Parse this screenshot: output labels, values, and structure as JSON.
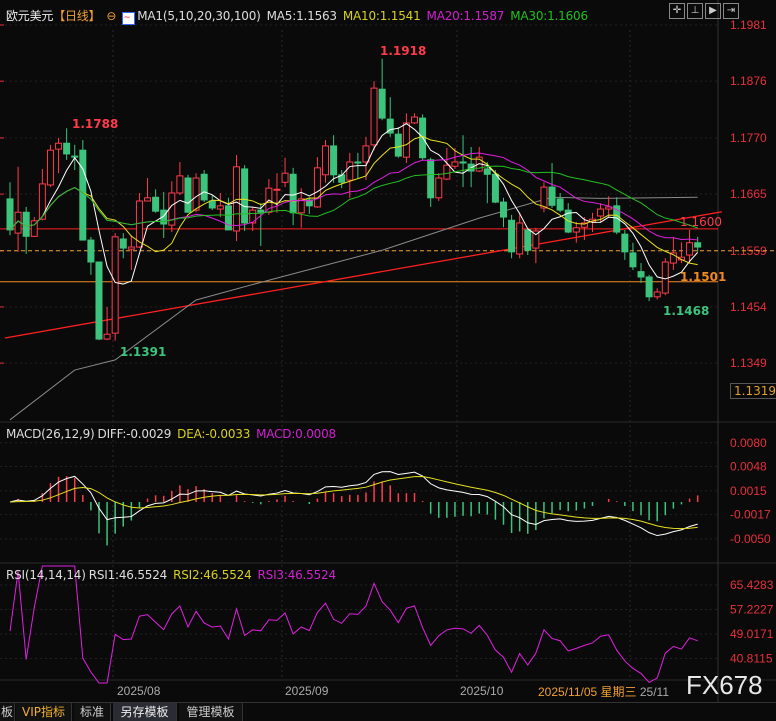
{
  "header": {
    "symbol": "欧元美元",
    "period": "【日线】",
    "ma_label": "MA1(5,10,20,30,100)",
    "ma5": "MA5:1.1563",
    "ma10": "MA10:1.1541",
    "ma20": "MA20:1.1587",
    "ma30": "MA30:1.1606"
  },
  "colors": {
    "up": "#ff3b4b",
    "down": "#3cc47c",
    "ma5": "#ffffff",
    "ma10": "#e6e020",
    "ma20": "#e020e0",
    "ma30": "#22c022",
    "ma100": "#8a8a8a",
    "axis": "#e8303c"
  },
  "toolbar": {
    "icons": [
      "crosshair-icon",
      "draw-line-icon",
      "play-icon",
      "export-icon"
    ]
  },
  "price_axis": [
    "1.1981",
    "1.1876",
    "1.1770",
    "1.1665",
    "1.1559",
    "1.1454",
    "1.1349"
  ],
  "price_axis_values": [
    1.1981,
    1.1876,
    1.177,
    1.1665,
    1.1559,
    1.1454,
    1.1349
  ],
  "cursor_price": "1.1319",
  "annotations": {
    "high": "1.1918",
    "high2": "1.1788",
    "low": "1.1391",
    "low2": "1.1468",
    "resistance": "1.1600",
    "support": "1.1501"
  },
  "levels": {
    "resistance": 1.16,
    "last": 1.1559,
    "support": 1.1501
  },
  "chart_data": {
    "type": "candlestick",
    "ohlc": [
      [
        1.1656,
        1.1687,
        1.1588,
        1.1598
      ],
      [
        1.1592,
        1.1716,
        1.1557,
        1.1631
      ],
      [
        1.1631,
        1.1641,
        1.1553,
        1.1586
      ],
      [
        1.1586,
        1.1622,
        1.1585,
        1.1615
      ],
      [
        1.1618,
        1.1712,
        1.1616,
        1.1684
      ],
      [
        1.1682,
        1.1757,
        1.1678,
        1.1747
      ],
      [
        1.1749,
        1.177,
        1.1704,
        1.176
      ],
      [
        1.176,
        1.1788,
        1.1729,
        1.174
      ],
      [
        1.1736,
        1.1757,
        1.171,
        1.1734
      ],
      [
        1.1747,
        1.1766,
        1.1579,
        1.1579
      ],
      [
        1.1579,
        1.1585,
        1.1514,
        1.1538
      ],
      [
        1.1538,
        1.1538,
        1.1392,
        1.1394
      ],
      [
        1.1394,
        1.1454,
        1.1392,
        1.1403
      ],
      [
        1.1405,
        1.1592,
        1.1391,
        1.1585
      ],
      [
        1.1581,
        1.1592,
        1.1545,
        1.1564
      ],
      [
        1.1562,
        1.1588,
        1.1523,
        1.1566
      ],
      [
        1.1566,
        1.1667,
        1.1564,
        1.1652
      ],
      [
        1.1652,
        1.1695,
        1.1654,
        1.1658
      ],
      [
        1.1659,
        1.1674,
        1.163,
        1.1633
      ],
      [
        1.1635,
        1.1669,
        1.1583,
        1.1609
      ],
      [
        1.1607,
        1.1689,
        1.1594,
        1.1667
      ],
      [
        1.1667,
        1.1725,
        1.1663,
        1.1699
      ],
      [
        1.1695,
        1.1701,
        1.163,
        1.1631
      ],
      [
        1.1635,
        1.1704,
        1.1631,
        1.1695
      ],
      [
        1.1702,
        1.171,
        1.165,
        1.1654
      ],
      [
        1.1652,
        1.1663,
        1.1635,
        1.1639
      ],
      [
        1.1637,
        1.1667,
        1.1622,
        1.1643
      ],
      [
        1.1643,
        1.1658,
        1.1598,
        1.1598
      ],
      [
        1.1596,
        1.1738,
        1.1577,
        1.1716
      ],
      [
        1.1712,
        1.1719,
        1.1596,
        1.1611
      ],
      [
        1.1611,
        1.1641,
        1.1596,
        1.1635
      ],
      [
        1.1635,
        1.1648,
        1.1568,
        1.1631
      ],
      [
        1.1631,
        1.1693,
        1.1626,
        1.1676
      ],
      [
        1.1673,
        1.1704,
        1.163,
        1.1674
      ],
      [
        1.1687,
        1.1733,
        1.1678,
        1.1704
      ],
      [
        1.1702,
        1.1714,
        1.1607,
        1.163
      ],
      [
        1.163,
        1.1676,
        1.1602,
        1.1656
      ],
      [
        1.1654,
        1.1659,
        1.1628,
        1.1643
      ],
      [
        1.1641,
        1.1734,
        1.1639,
        1.1714
      ],
      [
        1.1701,
        1.1766,
        1.1686,
        1.1755
      ],
      [
        1.1755,
        1.1775,
        1.1686,
        1.1701
      ],
      [
        1.1701,
        1.171,
        1.1676,
        1.1687
      ],
      [
        1.1691,
        1.1742,
        1.1658,
        1.1725
      ],
      [
        1.1725,
        1.1742,
        1.1695,
        1.1723
      ],
      [
        1.1725,
        1.1772,
        1.1691,
        1.1755
      ],
      [
        1.1757,
        1.1876,
        1.1747,
        1.1863
      ],
      [
        1.1861,
        1.1918,
        1.1803,
        1.1807
      ],
      [
        1.1805,
        1.1846,
        1.1772,
        1.1779
      ],
      [
        1.1777,
        1.179,
        1.1733,
        1.1736
      ],
      [
        1.1734,
        1.1816,
        1.1723,
        1.1798
      ],
      [
        1.1798,
        1.1816,
        1.1796,
        1.1809
      ],
      [
        1.1807,
        1.1814,
        1.1729,
        1.1733
      ],
      [
        1.1729,
        1.1733,
        1.1641,
        1.1658
      ],
      [
        1.1658,
        1.1704,
        1.1652,
        1.1695
      ],
      [
        1.1693,
        1.1751,
        1.1691,
        1.1719
      ],
      [
        1.1717,
        1.1751,
        1.1712,
        1.1725
      ],
      [
        1.1725,
        1.1775,
        1.1678,
        1.1723
      ],
      [
        1.1721,
        1.1753,
        1.1678,
        1.1708
      ],
      [
        1.1708,
        1.1753,
        1.1706,
        1.1734
      ],
      [
        1.1712,
        1.1725,
        1.1648,
        1.1702
      ],
      [
        1.1702,
        1.171,
        1.1648,
        1.165
      ],
      [
        1.165,
        1.1658,
        1.1603,
        1.1622
      ],
      [
        1.1616,
        1.1626,
        1.1545,
        1.1557
      ],
      [
        1.1553,
        1.163,
        1.1545,
        1.1611
      ],
      [
        1.1598,
        1.1602,
        1.1551,
        1.156
      ],
      [
        1.1564,
        1.1602,
        1.1536,
        1.1596
      ],
      [
        1.1639,
        1.1687,
        1.1631,
        1.1678
      ],
      [
        1.1678,
        1.1723,
        1.1639,
        1.1644
      ],
      [
        1.1656,
        1.1667,
        1.1631,
        1.1635
      ],
      [
        1.1635,
        1.1648,
        1.1592,
        1.1594
      ],
      [
        1.1594,
        1.1613,
        1.1574,
        1.1602
      ],
      [
        1.1603,
        1.1622,
        1.1579,
        1.1611
      ],
      [
        1.1613,
        1.163,
        1.1594,
        1.1618
      ],
      [
        1.1624,
        1.1648,
        1.1611,
        1.1637
      ],
      [
        1.1637,
        1.1661,
        1.1622,
        1.1641
      ],
      [
        1.1643,
        1.1659,
        1.159,
        1.1594
      ],
      [
        1.159,
        1.1598,
        1.1542,
        1.1557
      ],
      [
        1.1555,
        1.1574,
        1.1523,
        1.1529
      ],
      [
        1.152,
        1.1536,
        1.1499,
        1.151
      ],
      [
        1.151,
        1.1514,
        1.1465,
        1.1473
      ],
      [
        1.1473,
        1.1489,
        1.1468,
        1.1482
      ],
      [
        1.148,
        1.1545,
        1.1476,
        1.1538
      ],
      [
        1.1536,
        1.1585,
        1.1523,
        1.1555
      ],
      [
        1.1542,
        1.1575,
        1.1536,
        1.1547
      ],
      [
        1.1551,
        1.1598,
        1.1536,
        1.1574
      ],
      [
        1.1574,
        1.1585,
        1.1557,
        1.1566
      ]
    ],
    "ma100": [
      [
        0,
        1.1243
      ],
      [
        8,
        1.1336
      ],
      [
        13,
        1.1355
      ],
      [
        23,
        1.1467
      ],
      [
        31,
        1.15
      ],
      [
        46,
        1.156
      ],
      [
        58,
        1.162
      ],
      [
        67,
        1.1659
      ],
      [
        73,
        1.1657
      ],
      [
        85,
        1.1659
      ]
    ],
    "trendline": [
      [
        0,
        1.1396
      ],
      [
        88,
        1.1632
      ]
    ],
    "x_ticks": [
      "2025/08",
      "2025/09",
      "2025/10"
    ],
    "macd": {
      "label": "MACD(26,12,9)",
      "diff": "DIFF:-0.0029",
      "dea": "DEA:-0.0033",
      "macd": "MACD:0.0008",
      "axis": [
        "0.0080",
        "0.0048",
        "0.0015",
        "-0.0017",
        "-0.0050"
      ],
      "axis_values": [
        0.008,
        0.0048,
        0.0015,
        -0.0017,
        -0.005
      ]
    },
    "rsi": {
      "label": "RSI(14,14,14)",
      "rsi1": "RSI1:46.5524",
      "rsi2": "RSI2:46.5524",
      "rsi3": "RSI3:46.5524",
      "axis": [
        "65.4283",
        "57.2227",
        "49.0171",
        "40.8115"
      ],
      "axis_values": [
        65.4283,
        57.2227,
        49.0171,
        40.8115
      ]
    }
  },
  "cursor_date": "2025/11/05 星期三",
  "cursor_date_tail": "25/11",
  "watermark": "FX678",
  "tabs": [
    "板",
    "VIP指标",
    "标准",
    "另存模板",
    "管理模板"
  ]
}
